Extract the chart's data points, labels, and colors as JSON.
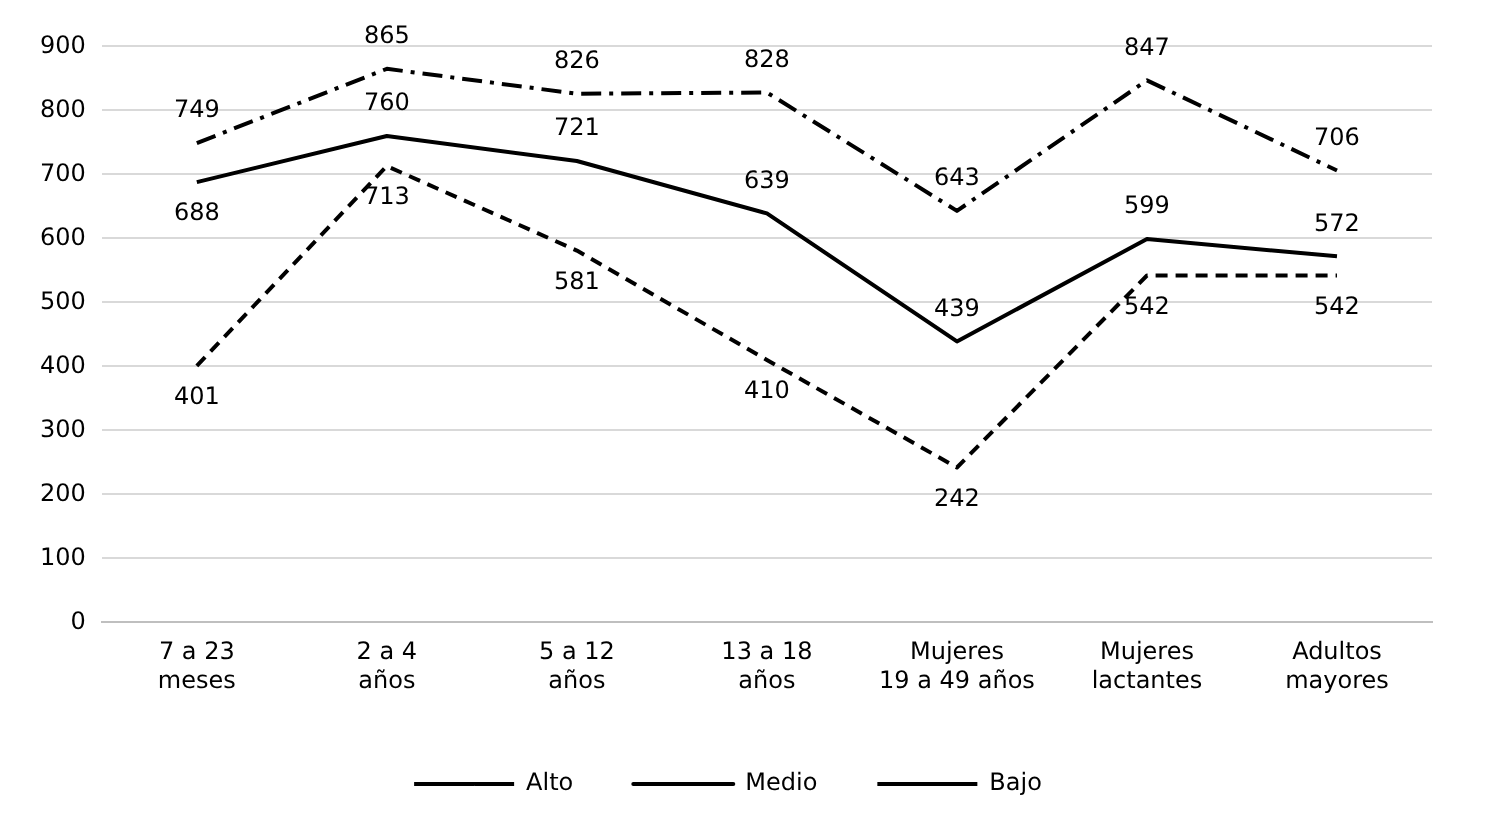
{
  "chart_data": {
    "type": "line",
    "categories": [
      "7 a 23\nmeses",
      "2 a 4\naños",
      "5 a 12\naños",
      "13 a 18\naños",
      "Mujeres\n19 a 49 años",
      "Mujeres\nlactantes",
      "Adultos\nmayores"
    ],
    "series": [
      {
        "name": "Alto",
        "color": "#000000",
        "line_style": "dashdot",
        "values": [
          749,
          865,
          826,
          828,
          643,
          847,
          706
        ]
      },
      {
        "name": "Medio",
        "color": "#000000",
        "line_style": "solid",
        "values": [
          688,
          760,
          721,
          639,
          439,
          599,
          572
        ]
      },
      {
        "name": "Bajo",
        "color": "#000000",
        "line_style": "dashed",
        "values": [
          401,
          713,
          581,
          410,
          242,
          542,
          542
        ]
      }
    ],
    "ylim": [
      0,
      900
    ],
    "yticks": [
      0,
      100,
      200,
      300,
      400,
      500,
      600,
      700,
      800,
      900
    ],
    "grid": "y",
    "legend": "bottom",
    "marker": "none",
    "data_labels": true
  }
}
